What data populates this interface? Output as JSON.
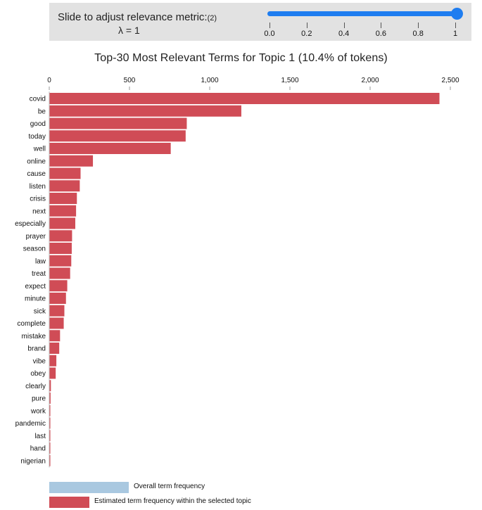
{
  "slider": {
    "label": "Slide to adjust relevance metric:",
    "footnote": "(2)",
    "lambda_text": "λ = 1",
    "value": 1,
    "min": 0,
    "max": 1,
    "tick_labels": [
      "0.0",
      "0.2",
      "0.4",
      "0.6",
      "0.8",
      "1"
    ],
    "accent_color": "#1e7df0"
  },
  "chart_data": {
    "type": "bar",
    "orientation": "horizontal",
    "title": "Top-30 Most Relevant Terms for Topic 1 (10.4% of tokens)",
    "xlim": [
      0,
      2500
    ],
    "x_ticks": [
      0,
      500,
      1000,
      1500,
      2000,
      2500
    ],
    "x_tick_labels": [
      "0",
      "500",
      "1,000",
      "1,500",
      "2,000",
      "2,500"
    ],
    "categories": [
      "covid",
      "be",
      "good",
      "today",
      "well",
      "online",
      "cause",
      "listen",
      "crisis",
      "next",
      "especially",
      "prayer",
      "season",
      "law",
      "treat",
      "expect",
      "minute",
      "sick",
      "complete",
      "mistake",
      "brand",
      "vibe",
      "obey",
      "clearly",
      "pure",
      "work",
      "pandemic",
      "last",
      "hand",
      "nigerian"
    ],
    "series": [
      {
        "name": "Estimated term frequency within the selected topic",
        "color": "#d04c56",
        "values": [
          2430,
          1195,
          855,
          848,
          755,
          270,
          193,
          188,
          170,
          165,
          160,
          140,
          138,
          135,
          128,
          110,
          102,
          92,
          88,
          65,
          60,
          42,
          38,
          8,
          6,
          2,
          2,
          2,
          2,
          2
        ]
      }
    ],
    "legend": [
      {
        "label": "Overall term frequency",
        "color": "#a9c8e0"
      },
      {
        "label": "Estimated term frequency within the selected topic",
        "color": "#d04c56"
      }
    ],
    "legend_position": "bottom-left"
  }
}
